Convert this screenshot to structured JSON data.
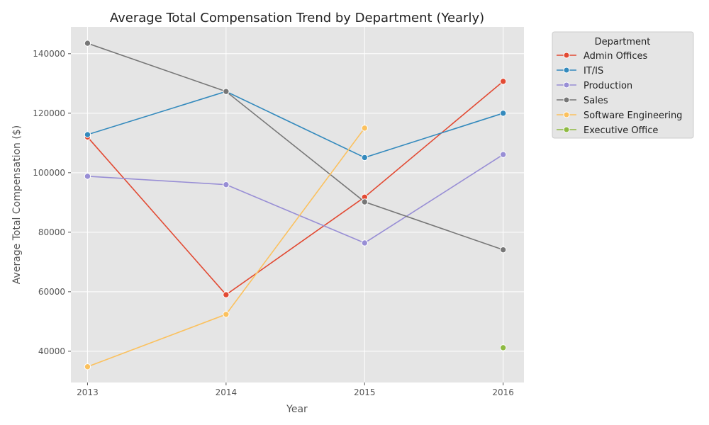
{
  "chart_data": {
    "type": "line",
    "title": "Average Total Compensation Trend by Department (Yearly)",
    "xlabel": "Year",
    "ylabel": "Average Total Compensation ($)",
    "x": [
      2013,
      2014,
      2015,
      2016
    ],
    "xlim": [
      2012.88,
      2016.15
    ],
    "ylim": [
      29500,
      149000
    ],
    "yticks": [
      40000,
      60000,
      80000,
      100000,
      120000,
      140000
    ],
    "grid": true,
    "legend": {
      "title": "Department",
      "placement": "outside-top-right"
    },
    "series": [
      {
        "name": "Admin Offices",
        "color": "#E24A33",
        "values": [
          112000,
          59000,
          91800,
          130700
        ]
      },
      {
        "name": "IT/IS",
        "color": "#348ABD",
        "values": [
          112800,
          127300,
          105100,
          120000
        ]
      },
      {
        "name": "Production",
        "color": "#988ED5",
        "values": [
          98800,
          96000,
          76400,
          106100
        ]
      },
      {
        "name": "Sales",
        "color": "#777777",
        "values": [
          143500,
          127300,
          90200,
          74100
        ]
      },
      {
        "name": "Software Engineering",
        "color": "#FBC15E",
        "values": [
          34800,
          52400,
          115000,
          null
        ]
      },
      {
        "name": "Executive Office",
        "color": "#8EBA42",
        "values": [
          null,
          null,
          null,
          41200
        ]
      }
    ]
  }
}
